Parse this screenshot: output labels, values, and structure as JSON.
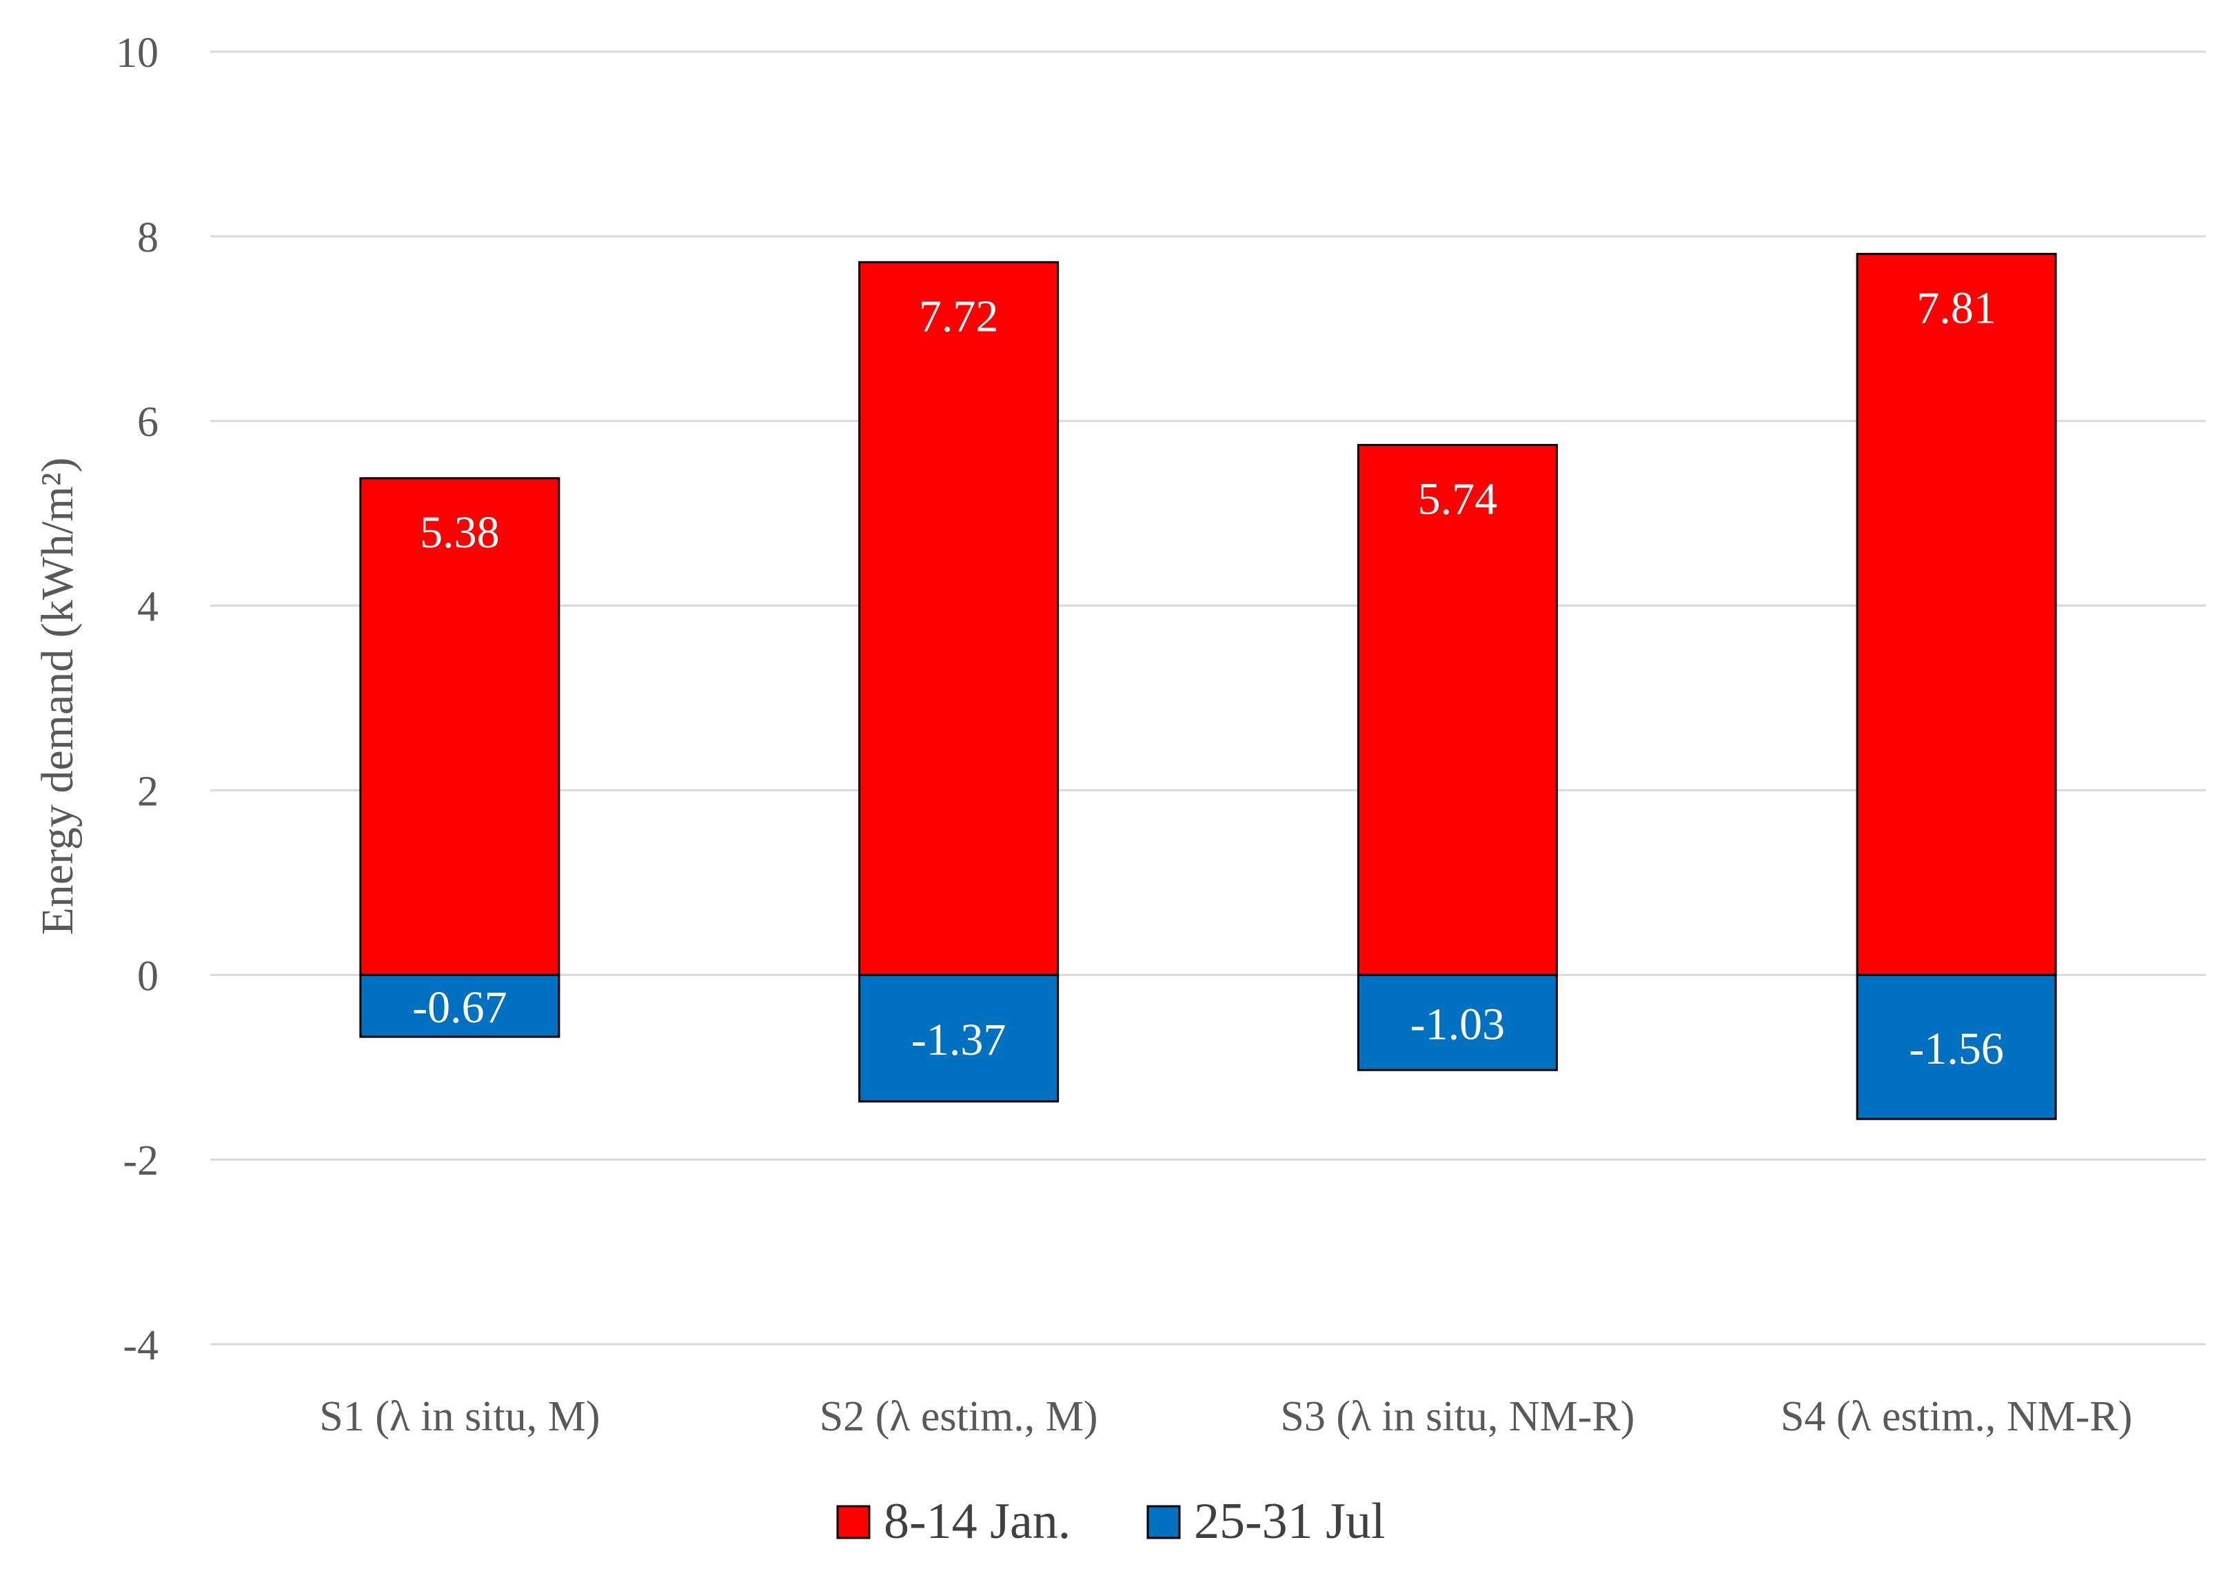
{
  "chart_data": {
    "type": "bar",
    "stacked": true,
    "title": "",
    "xlabel": "",
    "ylabel": "Energy demand (kWh/m²)",
    "ylim": [
      -4,
      10
    ],
    "yticks": [
      10,
      8,
      6,
      4,
      2,
      0,
      -2,
      -4
    ],
    "grid": true,
    "categories": [
      "S1 (λ in situ, M)",
      "S2 (λ estim., M)",
      "S3 (λ in situ, NM-R)",
      "S4 (λ estim., NM-R)"
    ],
    "series": [
      {
        "name": "8-14 Jan.",
        "color": "#ff0000",
        "values": [
          5.38,
          7.72,
          5.74,
          7.81
        ]
      },
      {
        "name": "25-31 Jul",
        "color": "#0070c0",
        "values": [
          -0.67,
          -1.37,
          -1.03,
          -1.56
        ]
      }
    ],
    "legend_position": "bottom"
  }
}
